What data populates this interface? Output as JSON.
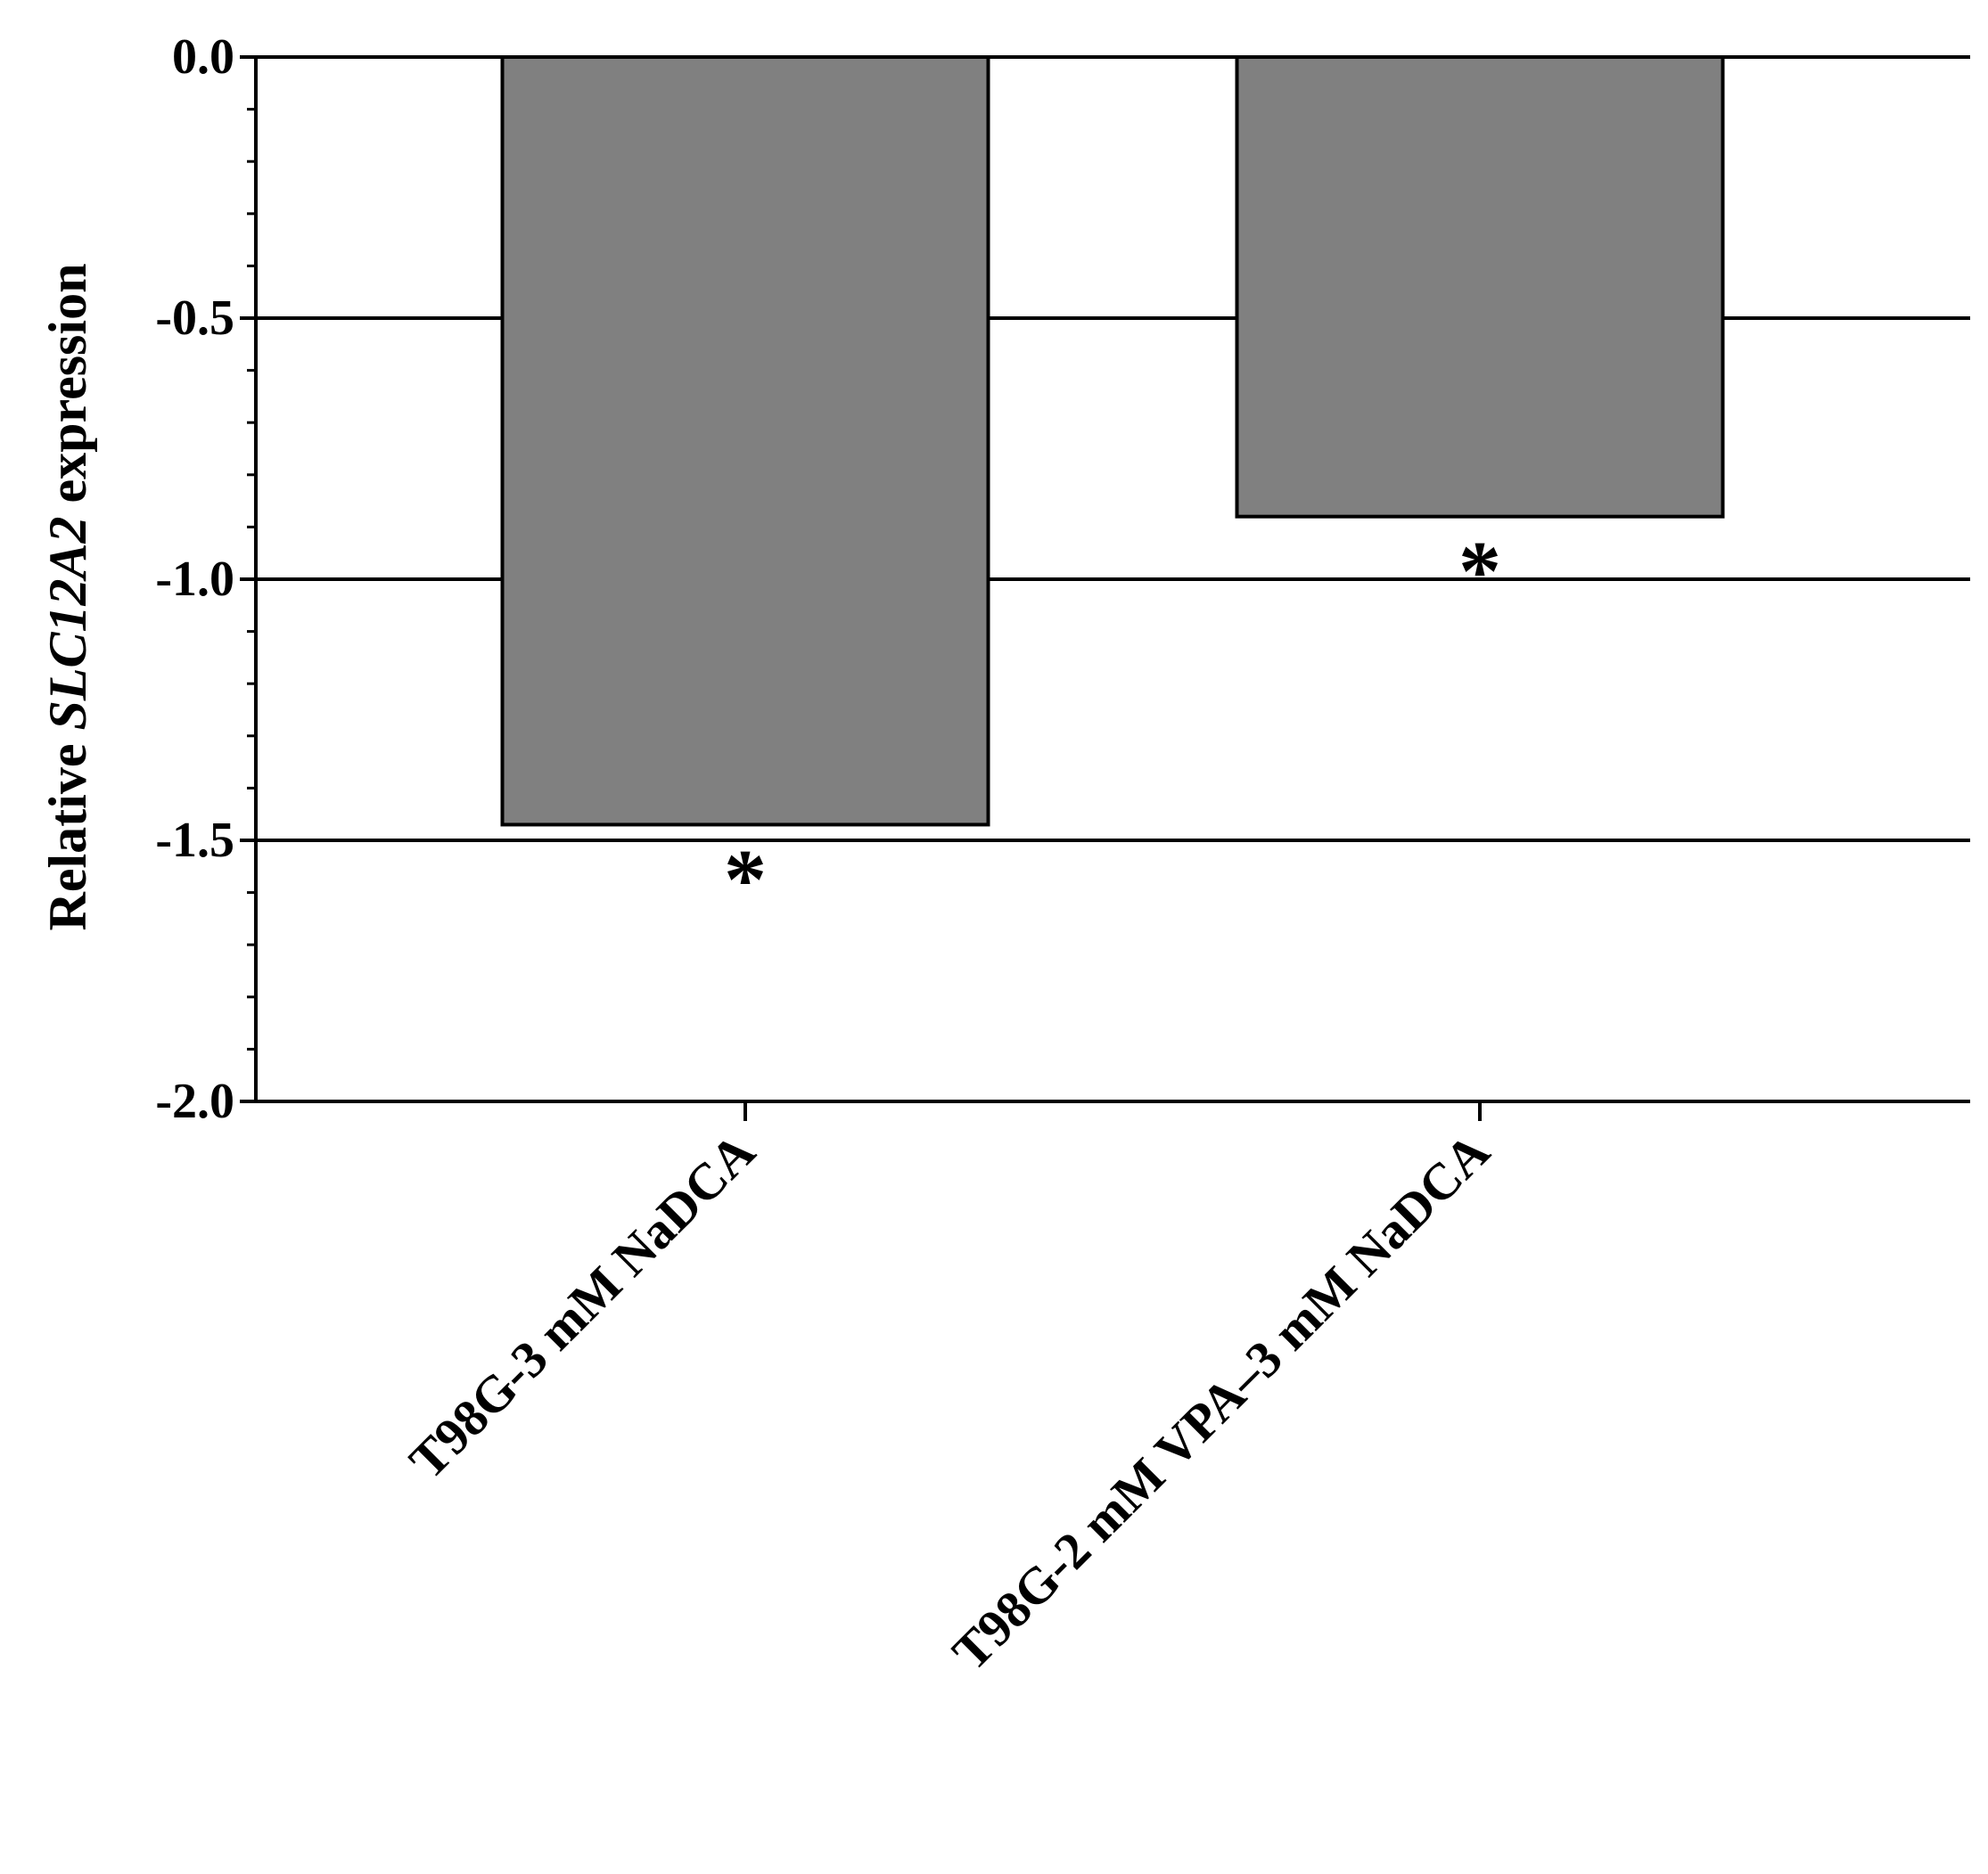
{
  "chart_data": {
    "type": "bar",
    "categories": [
      "T98G-3 mM NaDCA",
      "T98G-2 mM VPA–3 mM NaDCA"
    ],
    "values": [
      -1.47,
      -0.88
    ],
    "ylabel": {
      "prefix": "Relative ",
      "gene": "SLC12A2",
      "suffix": " expression"
    },
    "ylim": [
      -2.0,
      0.0
    ],
    "yticks": [
      "0.0",
      "-0.5",
      "-1.0",
      "-1.5",
      "-2.0"
    ],
    "ytick_values": [
      0.0,
      -0.5,
      -1.0,
      -1.5,
      -2.0
    ],
    "grid": true,
    "annotations": [
      "*",
      "*"
    ],
    "colors": {
      "bar_fill": "#808080",
      "bar_stroke": "#000000",
      "axis": "#000000"
    }
  }
}
